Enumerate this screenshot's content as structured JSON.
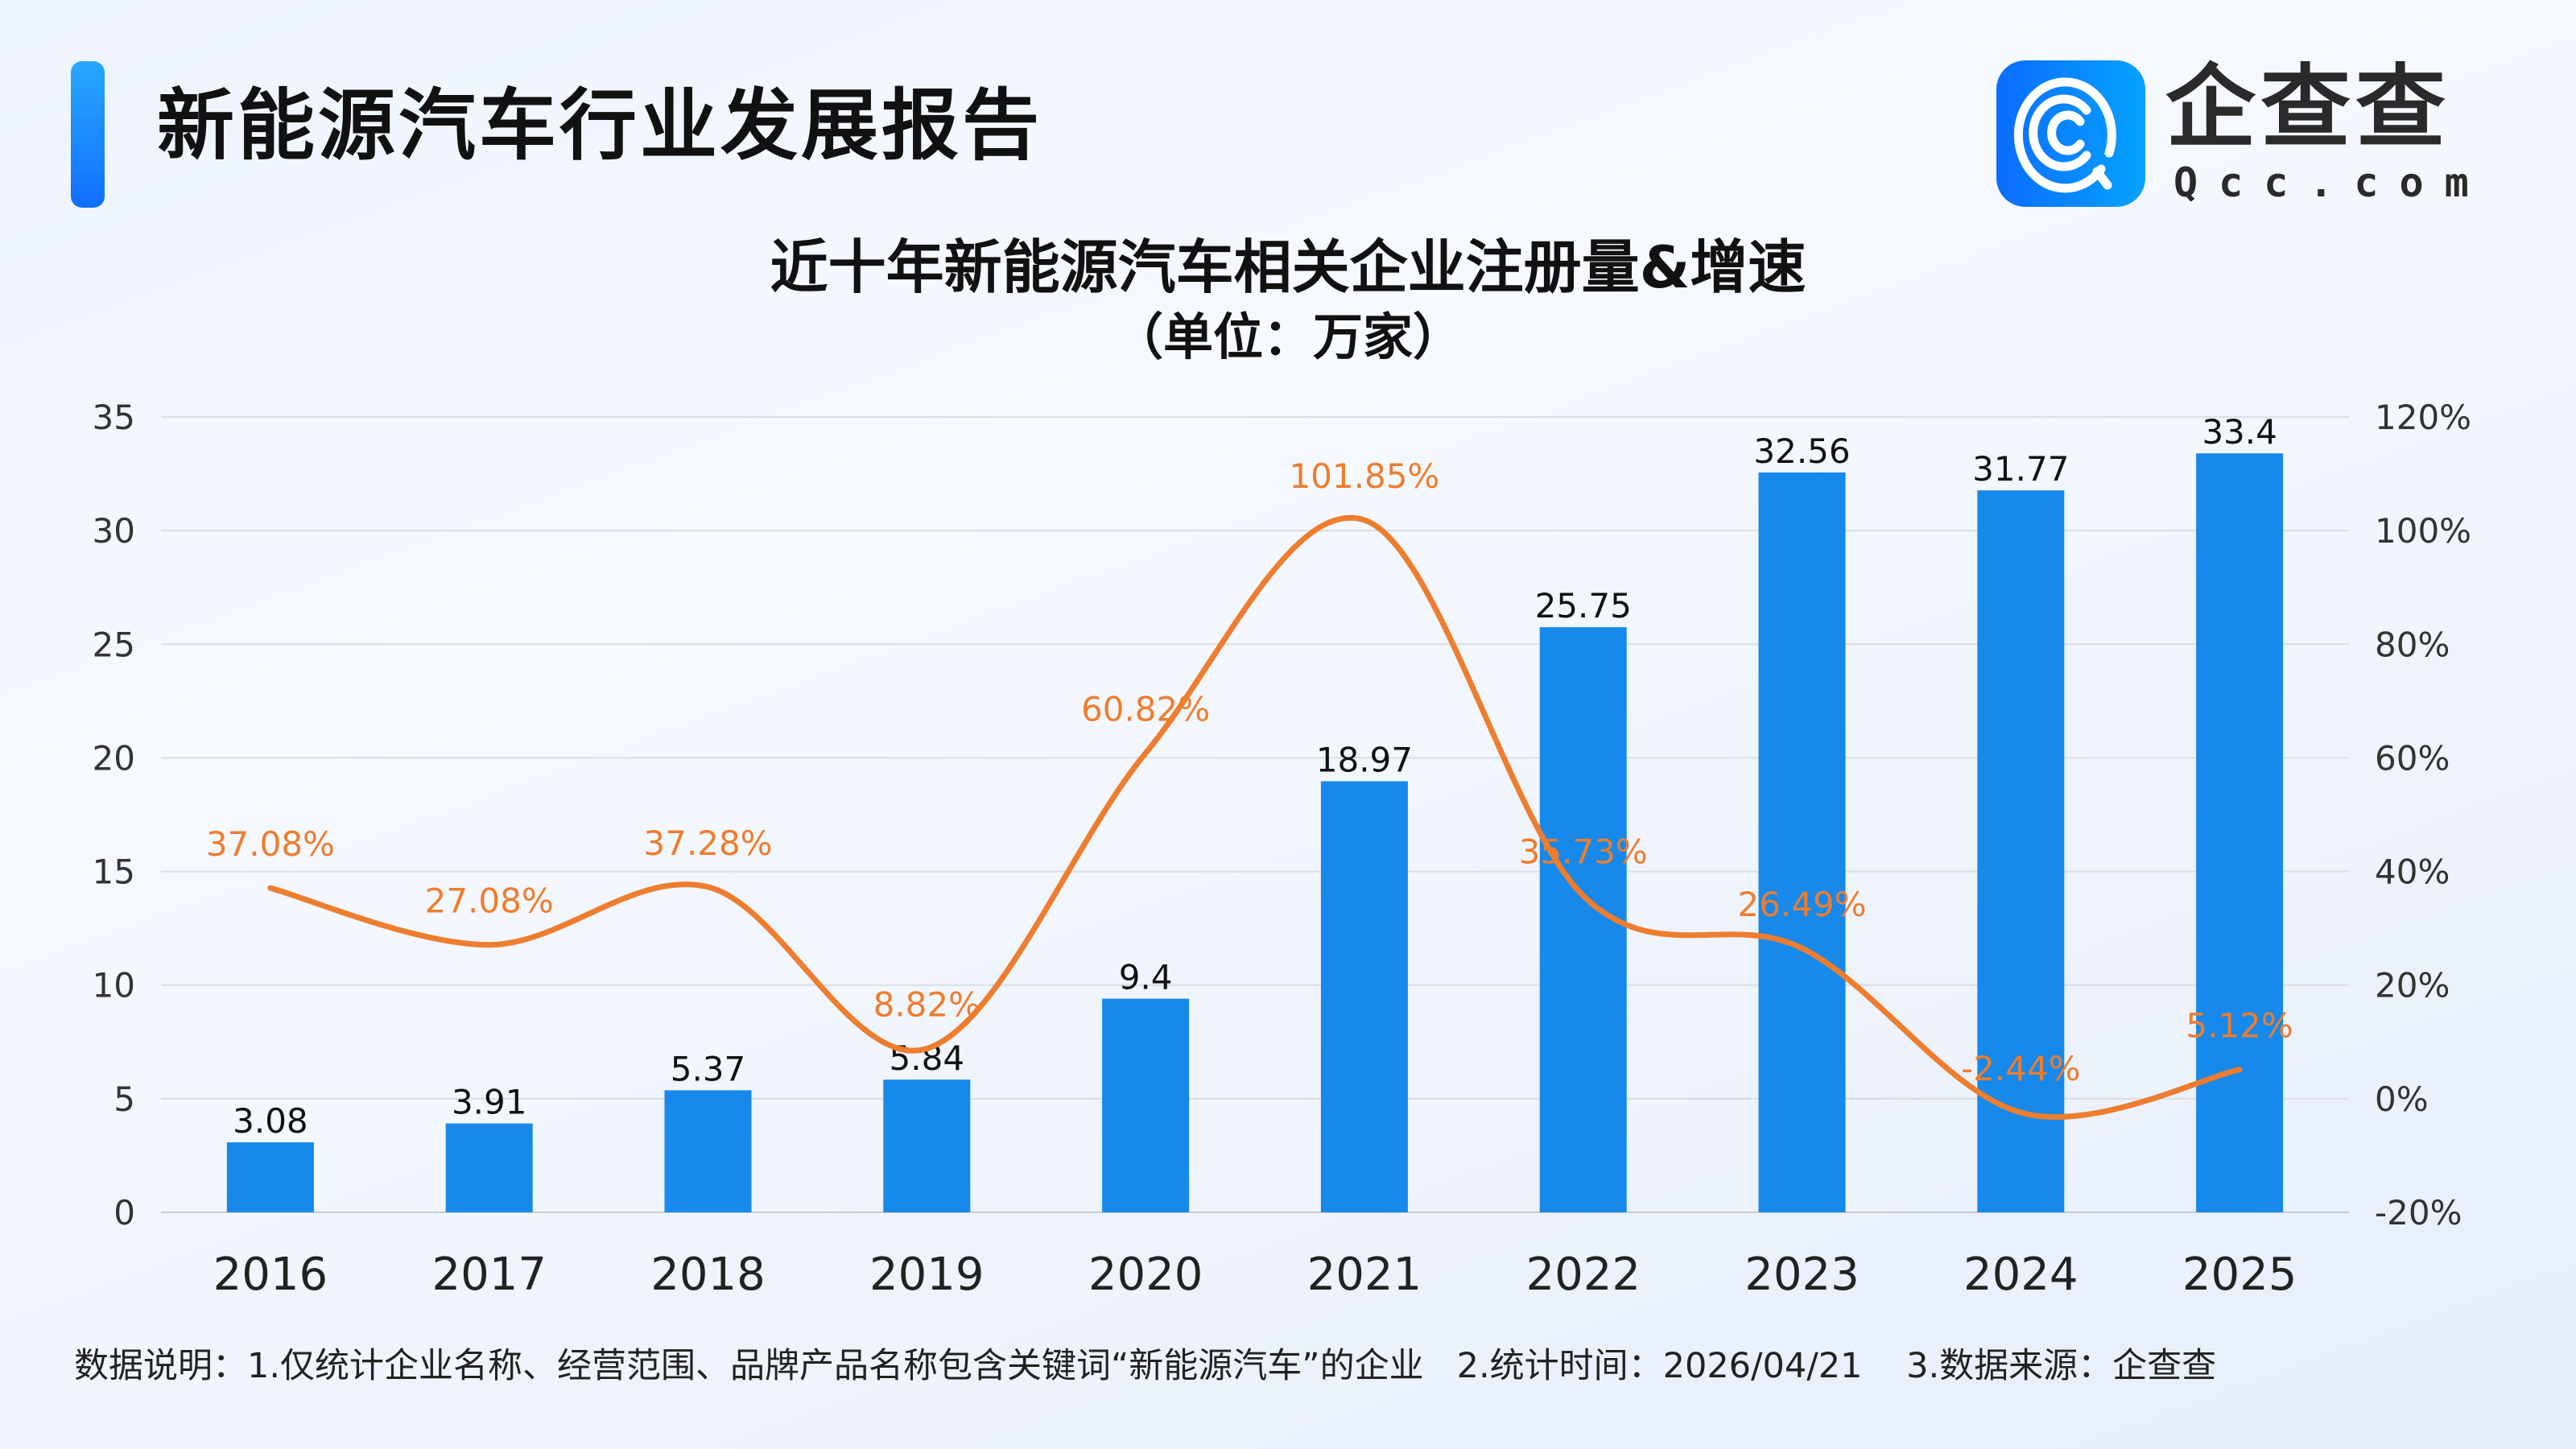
{
  "header": {
    "title": "新能源汽车行业发展报告",
    "brand_cn": "企查查",
    "brand_en": "Qcc.com"
  },
  "chart_data": {
    "type": "bar+line",
    "title": "近十年新能源汽车相关企业注册量&增速",
    "subtitle": "（单位：万家）",
    "categories": [
      "2016",
      "2017",
      "2018",
      "2019",
      "2020",
      "2021",
      "2022",
      "2023",
      "2024",
      "2025"
    ],
    "series": [
      {
        "type": "bar",
        "axis": "left",
        "color": "#1689ea",
        "values": [
          3.08,
          3.91,
          5.37,
          5.84,
          9.4,
          18.97,
          25.75,
          32.56,
          31.77,
          33.4
        ],
        "labels": [
          "3.08",
          "3.91",
          "5.37",
          "5.84",
          "9.4",
          "18.97",
          "25.75",
          "32.56",
          "31.77",
          "33.4"
        ]
      },
      {
        "type": "line",
        "axis": "right",
        "smooth": true,
        "color": "#ee7d2f",
        "values": [
          37.08,
          27.08,
          37.28,
          8.82,
          60.82,
          101.85,
          35.73,
          26.49,
          -2.44,
          5.12
        ],
        "labels": [
          "37.08%",
          "27.08%",
          "37.28%",
          "8.82%",
          "60.82%",
          "101.85%",
          "35.73%",
          "26.49%",
          "-2.44%",
          "5.12%"
        ]
      }
    ],
    "y_left": {
      "range": [
        0,
        35
      ],
      "ticks": [
        "0",
        "5",
        "10",
        "15",
        "20",
        "25",
        "30",
        "35"
      ]
    },
    "y_right": {
      "range": [
        -20,
        120
      ],
      "ticks": [
        "-20%",
        "0%",
        "20%",
        "40%",
        "60%",
        "80%",
        "100%",
        "120%"
      ]
    },
    "grid": true,
    "legend": "none"
  },
  "footer": "数据说明：1.仅统计企业名称、经营范围、品牌产品名称包含关键词“新能源汽车”的企业   2.统计时间：2026/04/21    3.数据来源：企查查"
}
